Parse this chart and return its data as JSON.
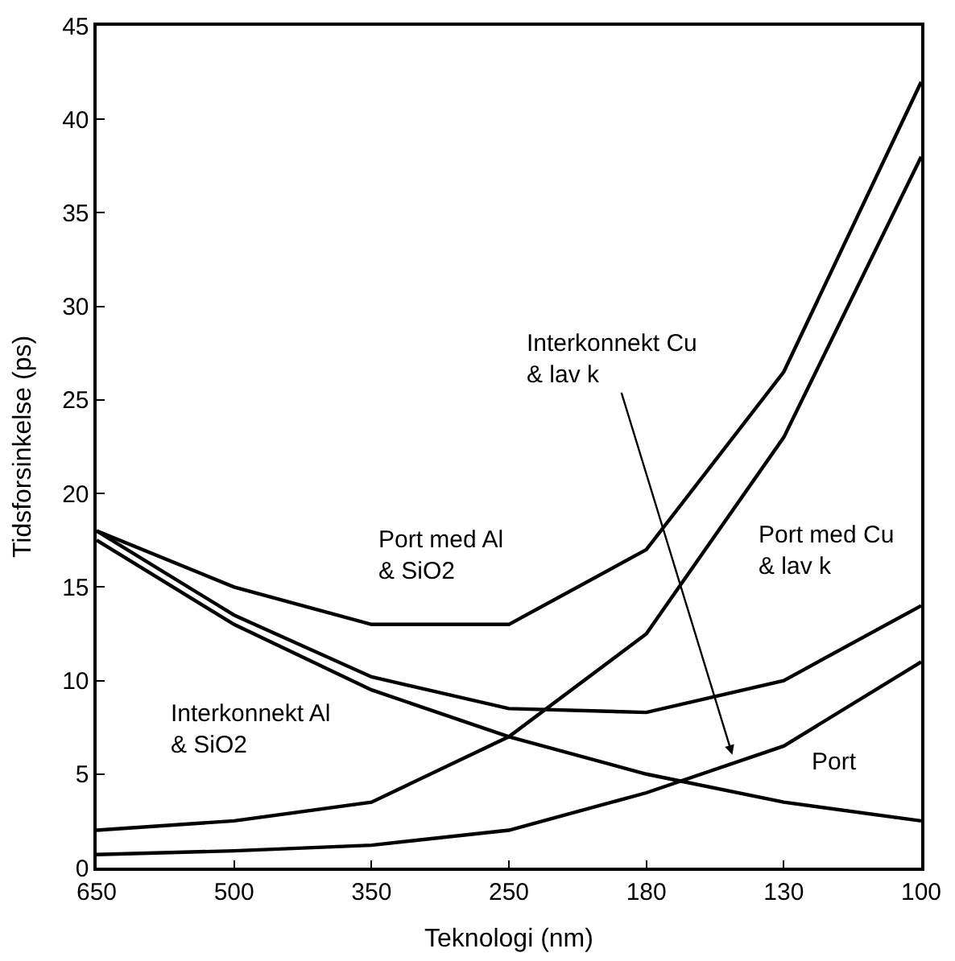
{
  "chart_data": {
    "type": "line",
    "xlabel": "Teknologi (nm)",
    "ylabel": "Tidsforsinkelse (ps)",
    "categories": [
      "650",
      "500",
      "350",
      "250",
      "180",
      "130",
      "100"
    ],
    "series": [
      {
        "color": "#000000",
        "values": [
          18,
          15,
          13,
          13,
          17,
          26.5,
          42
        ]
      },
      {
        "color": "#000000",
        "values": [
          2,
          2.5,
          3.5,
          7,
          12.5,
          23,
          38
        ]
      },
      {
        "color": "#000000",
        "values": [
          17.5,
          13,
          9.5,
          7,
          5,
          3.5,
          2.5
        ]
      },
      {
        "color": "#000000",
        "values": [
          18,
          13.5,
          10.2,
          8.5,
          8.3,
          10,
          14
        ]
      },
      {
        "color": "#000000",
        "values": [
          0.7,
          0.9,
          1.2,
          2,
          4,
          6.5,
          11
        ]
      }
    ],
    "ylim": [
      0,
      45
    ],
    "yticks": [
      0,
      5,
      10,
      15,
      20,
      25,
      30,
      35,
      40,
      45
    ],
    "marker": "none",
    "line_style": "solid",
    "annotations": [
      "Port med Al\n& SiO2",
      "Interkonnekt Al\n& SiO2",
      "Port",
      "Interkonnekt Cu\n& lav k",
      "Port med Cu\n& lav k"
    ]
  }
}
